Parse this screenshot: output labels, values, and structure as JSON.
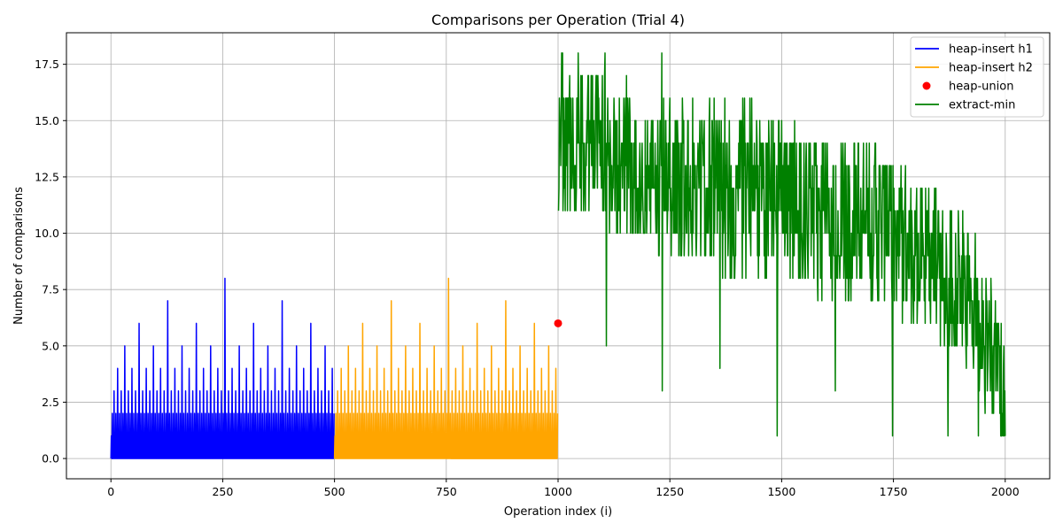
{
  "chart_data": {
    "type": "line",
    "title": "Comparisons per Operation (Trial 4)",
    "xlabel": "Operation index (i)",
    "ylabel": "Number of comparisons",
    "xlim": [
      -99.5,
      2099.5
    ],
    "ylim": [
      -0.9,
      18.9
    ],
    "x_ticks": [
      0,
      250,
      500,
      750,
      1000,
      1250,
      1500,
      1750,
      2000
    ],
    "x_tick_labels": [
      "0",
      "250",
      "500",
      "750",
      "1000",
      "1250",
      "1500",
      "1750",
      "2000"
    ],
    "y_ticks": [
      0,
      2.5,
      5,
      7.5,
      10,
      12.5,
      15,
      17.5
    ],
    "y_tick_labels": [
      "0.0",
      "2.5",
      "5.0",
      "7.5",
      "10.0",
      "12.5",
      "15.0",
      "17.5"
    ],
    "grid": true,
    "legend_position": "top-right",
    "series": [
      {
        "name": "heap-insert h1",
        "type": "line",
        "color": "#0000ff",
        "x_range": [
          0,
          499
        ],
        "pattern": "binomial-heap insert comparisons: value = number of trailing 1-bits of index (0–2 baseline with periodic spikes)",
        "peaks": [
          {
            "x": 15,
            "y": 4
          },
          {
            "x": 31,
            "y": 5
          },
          {
            "x": 47,
            "y": 4
          },
          {
            "x": 63,
            "y": 6
          },
          {
            "x": 79,
            "y": 4
          },
          {
            "x": 95,
            "y": 5
          },
          {
            "x": 111,
            "y": 4
          },
          {
            "x": 127,
            "y": 7
          },
          {
            "x": 143,
            "y": 4
          },
          {
            "x": 159,
            "y": 5
          },
          {
            "x": 175,
            "y": 4
          },
          {
            "x": 191,
            "y": 6
          },
          {
            "x": 207,
            "y": 4
          },
          {
            "x": 223,
            "y": 5
          },
          {
            "x": 239,
            "y": 4
          },
          {
            "x": 255,
            "y": 8
          },
          {
            "x": 271,
            "y": 4
          },
          {
            "x": 287,
            "y": 5
          },
          {
            "x": 303,
            "y": 4
          },
          {
            "x": 319,
            "y": 6
          },
          {
            "x": 335,
            "y": 4
          },
          {
            "x": 351,
            "y": 5
          },
          {
            "x": 367,
            "y": 4
          },
          {
            "x": 383,
            "y": 7
          },
          {
            "x": 399,
            "y": 4
          },
          {
            "x": 415,
            "y": 5
          },
          {
            "x": 431,
            "y": 4
          },
          {
            "x": 447,
            "y": 6
          },
          {
            "x": 463,
            "y": 4
          },
          {
            "x": 479,
            "y": 5
          },
          {
            "x": 495,
            "y": 4
          }
        ]
      },
      {
        "name": "heap-insert h2",
        "type": "line",
        "color": "#ffa500",
        "x_range": [
          500,
          999
        ],
        "pattern": "binomial-heap insert comparisons: value = number of trailing 1-bits of (i-500) (0–2 baseline with periodic spikes)",
        "peaks": [
          {
            "x": 515,
            "y": 4
          },
          {
            "x": 531,
            "y": 5
          },
          {
            "x": 547,
            "y": 4
          },
          {
            "x": 563,
            "y": 6
          },
          {
            "x": 579,
            "y": 4
          },
          {
            "x": 595,
            "y": 5
          },
          {
            "x": 611,
            "y": 4
          },
          {
            "x": 627,
            "y": 7
          },
          {
            "x": 643,
            "y": 4
          },
          {
            "x": 659,
            "y": 5
          },
          {
            "x": 675,
            "y": 4
          },
          {
            "x": 691,
            "y": 6
          },
          {
            "x": 707,
            "y": 4
          },
          {
            "x": 723,
            "y": 5
          },
          {
            "x": 739,
            "y": 4
          },
          {
            "x": 755,
            "y": 8
          },
          {
            "x": 771,
            "y": 4
          },
          {
            "x": 787,
            "y": 5
          },
          {
            "x": 803,
            "y": 4
          },
          {
            "x": 819,
            "y": 6
          },
          {
            "x": 835,
            "y": 4
          },
          {
            "x": 851,
            "y": 5
          },
          {
            "x": 867,
            "y": 4
          },
          {
            "x": 883,
            "y": 7
          },
          {
            "x": 899,
            "y": 4
          },
          {
            "x": 915,
            "y": 5
          },
          {
            "x": 931,
            "y": 4
          },
          {
            "x": 947,
            "y": 6
          },
          {
            "x": 963,
            "y": 4
          },
          {
            "x": 979,
            "y": 5
          },
          {
            "x": 995,
            "y": 4
          }
        ]
      },
      {
        "name": "heap-union",
        "type": "scatter",
        "color": "#ff0000",
        "points": [
          {
            "x": 1000,
            "y": 6
          }
        ]
      },
      {
        "name": "extract-min",
        "type": "line",
        "color": "#008000",
        "x_range": [
          1001,
          2000
        ],
        "pattern": "noisy values, roughly 10–18 early, declining trend to roughly 1–8 at the end",
        "trend_band": [
          {
            "x": 1001,
            "lo": 11,
            "hi": 18
          },
          {
            "x": 1100,
            "lo": 10,
            "hi": 17
          },
          {
            "x": 1250,
            "lo": 9,
            "hi": 16
          },
          {
            "x": 1400,
            "lo": 8,
            "hi": 16
          },
          {
            "x": 1500,
            "lo": 8,
            "hi": 15
          },
          {
            "x": 1600,
            "lo": 7,
            "hi": 14
          },
          {
            "x": 1700,
            "lo": 7,
            "hi": 14
          },
          {
            "x": 1800,
            "lo": 6,
            "hi": 13
          },
          {
            "x": 1900,
            "lo": 4,
            "hi": 11
          },
          {
            "x": 1950,
            "lo": 3,
            "hi": 9
          },
          {
            "x": 2000,
            "lo": 1,
            "hi": 6
          }
        ],
        "notable_points": [
          {
            "x": 1002,
            "y": 12
          },
          {
            "x": 1008,
            "y": 18
          },
          {
            "x": 1045,
            "y": 18
          },
          {
            "x": 1105,
            "y": 18
          },
          {
            "x": 1108,
            "y": 5
          },
          {
            "x": 1232,
            "y": 18
          },
          {
            "x": 1233,
            "y": 3
          },
          {
            "x": 1362,
            "y": 4
          },
          {
            "x": 1490,
            "y": 1
          },
          {
            "x": 1620,
            "y": 3
          },
          {
            "x": 1748,
            "y": 1
          },
          {
            "x": 1872,
            "y": 1
          },
          {
            "x": 1940,
            "y": 1
          },
          {
            "x": 1955,
            "y": 2
          },
          {
            "x": 1990,
            "y": 1
          },
          {
            "x": 1998,
            "y": 1
          }
        ]
      }
    ]
  }
}
